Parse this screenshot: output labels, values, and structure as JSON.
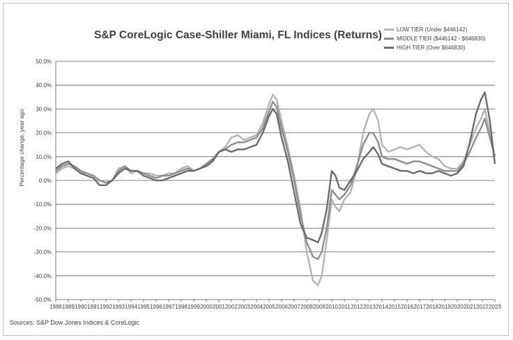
{
  "chart_data": {
    "type": "line",
    "title": "S&P CoreLogic Case-Shiller Miami, FL Indices (Returns)",
    "ylabel": "Percentage change, year ago",
    "xlabel": "",
    "source": "Sources: S&P Dow Jones Indices & CoreLogic",
    "ylim": [
      -50,
      50
    ],
    "xlim": [
      1988,
      2023
    ],
    "grid": true,
    "legend_position": "top-right",
    "y_ticks": [
      "50.0%",
      "40.0%",
      "30.0%",
      "20.0%",
      "10.0%",
      "0.0%",
      "-10.0%",
      "-20.0%",
      "-30.0%",
      "-40.0%",
      "-50.0%"
    ],
    "x_ticks": [
      "1988",
      "1989",
      "1990",
      "1991",
      "1992",
      "1993",
      "1994",
      "1995",
      "1996",
      "1997",
      "1998",
      "1999",
      "2000",
      "2001",
      "2002",
      "2003",
      "2004",
      "2005",
      "2006",
      "2007",
      "2008",
      "2009",
      "2010",
      "2011",
      "2012",
      "2013",
      "2014",
      "2015",
      "2016",
      "2017",
      "2018",
      "2019",
      "2020",
      "2021",
      "2022",
      "2023"
    ],
    "series": [
      {
        "name": "LOW TIER (Under $446142)",
        "color": "#b3b3b3",
        "x": [
          1988,
          1988.5,
          1989,
          1989.5,
          1990,
          1990.5,
          1991,
          1991.5,
          1992,
          1992.5,
          1993,
          1993.5,
          1994,
          1994.5,
          1995,
          1995.5,
          1996,
          1996.5,
          1997,
          1997.5,
          1998,
          1998.5,
          1999,
          1999.5,
          2000,
          2000.5,
          2001,
          2001.5,
          2002,
          2002.5,
          2003,
          2003.5,
          2004,
          2004.5,
          2005,
          2005.3,
          2005.6,
          2006,
          2006.5,
          2007,
          2007.5,
          2008,
          2008.5,
          2008.9,
          2009.2,
          2009.6,
          2010,
          2010.3,
          2010.6,
          2011,
          2011.5,
          2012,
          2012.5,
          2013,
          2013.3,
          2013.7,
          2014,
          2014.5,
          2015,
          2015.5,
          2016,
          2016.5,
          2017,
          2017.5,
          2018,
          2018.5,
          2019,
          2019.5,
          2020,
          2020.5,
          2021,
          2021.5,
          2021.9,
          2022.2,
          2022.6,
          2023
        ],
        "y": [
          3,
          5,
          6,
          5,
          3,
          3,
          2,
          0,
          -1,
          0,
          5,
          6,
          3,
          4,
          3,
          3,
          2,
          2,
          3,
          3,
          5,
          6,
          4,
          5,
          7,
          8,
          12,
          14,
          18,
          19,
          17,
          18,
          19,
          24,
          32,
          36,
          34,
          25,
          14,
          2,
          -12,
          -30,
          -42,
          -44,
          -40,
          -25,
          -8,
          -11,
          -13,
          -8,
          -5,
          5,
          20,
          28,
          30,
          25,
          15,
          12,
          13,
          14,
          13,
          14,
          15,
          12,
          10,
          9,
          6,
          5,
          5,
          8,
          15,
          22,
          26,
          30,
          20,
          10
        ]
      },
      {
        "name": "MIDDLE TIER ($446142 - $646830)",
        "color": "#8c8c8c",
        "x": [
          1988,
          1988.5,
          1989,
          1989.5,
          1990,
          1990.5,
          1991,
          1991.5,
          1992,
          1992.5,
          1993,
          1993.5,
          1994,
          1994.5,
          1995,
          1995.5,
          1996,
          1996.5,
          1997,
          1997.5,
          1998,
          1998.5,
          1999,
          1999.5,
          2000,
          2000.5,
          2001,
          2001.5,
          2002,
          2002.5,
          2003,
          2003.5,
          2004,
          2004.5,
          2005,
          2005.3,
          2005.6,
          2006,
          2006.5,
          2007,
          2007.5,
          2008,
          2008.5,
          2008.9,
          2009.2,
          2009.6,
          2010,
          2010.3,
          2010.6,
          2011,
          2011.5,
          2012,
          2012.5,
          2013,
          2013.3,
          2013.7,
          2014,
          2014.5,
          2015,
          2015.5,
          2016,
          2016.5,
          2017,
          2017.5,
          2018,
          2018.5,
          2019,
          2019.5,
          2020,
          2020.5,
          2021,
          2021.5,
          2021.9,
          2022.2,
          2022.6,
          2023
        ],
        "y": [
          4,
          6,
          7,
          6,
          4,
          3,
          2,
          0,
          -1,
          0,
          4,
          6,
          4,
          4,
          3,
          2,
          1,
          2,
          2,
          3,
          4,
          5,
          4,
          5,
          7,
          9,
          12,
          13,
          15,
          16,
          16,
          17,
          18,
          22,
          29,
          33,
          31,
          22,
          12,
          0,
          -14,
          -26,
          -32,
          -33,
          -30,
          -20,
          -4,
          -6,
          -8,
          -6,
          -2,
          6,
          15,
          20,
          20,
          16,
          10,
          9,
          9,
          8,
          7,
          8,
          8,
          7,
          6,
          5,
          4,
          4,
          4,
          7,
          12,
          18,
          22,
          26,
          18,
          10
        ]
      },
      {
        "name": "HIGH TIER (Over $646830)",
        "color": "#6a6a6a",
        "x": [
          1988,
          1988.5,
          1989,
          1989.5,
          1990,
          1990.5,
          1991,
          1991.5,
          1992,
          1992.5,
          1993,
          1993.5,
          1994,
          1994.5,
          1995,
          1995.5,
          1996,
          1996.5,
          1997,
          1997.5,
          1998,
          1998.5,
          1999,
          1999.5,
          2000,
          2000.5,
          2001,
          2001.5,
          2002,
          2002.5,
          2003,
          2003.5,
          2004,
          2004.5,
          2005,
          2005.3,
          2005.6,
          2006,
          2006.5,
          2007,
          2007.5,
          2008,
          2008.5,
          2008.9,
          2009.2,
          2009.6,
          2010,
          2010.3,
          2010.6,
          2011,
          2011.5,
          2012,
          2012.5,
          2013,
          2013.3,
          2013.7,
          2014,
          2014.5,
          2015,
          2015.5,
          2016,
          2016.5,
          2017,
          2017.5,
          2018,
          2018.5,
          2019,
          2019.5,
          2020,
          2020.5,
          2021,
          2021.5,
          2021.9,
          2022.2,
          2022.6,
          2023
        ],
        "y": [
          5,
          7,
          8,
          5,
          3,
          2,
          1,
          -2,
          -2,
          0,
          3,
          5,
          4,
          4,
          2,
          1,
          0,
          0,
          1,
          2,
          3,
          4,
          4,
          5,
          6,
          8,
          12,
          13,
          12,
          13,
          13,
          14,
          15,
          20,
          27,
          30,
          28,
          18,
          8,
          -5,
          -18,
          -24,
          -25,
          -26,
          -22,
          -12,
          4,
          2,
          -3,
          -4,
          0,
          4,
          9,
          12,
          14,
          11,
          7,
          6,
          5,
          4,
          4,
          3,
          4,
          3,
          3,
          4,
          3,
          2,
          3,
          6,
          16,
          28,
          34,
          37,
          25,
          7
        ]
      }
    ]
  }
}
